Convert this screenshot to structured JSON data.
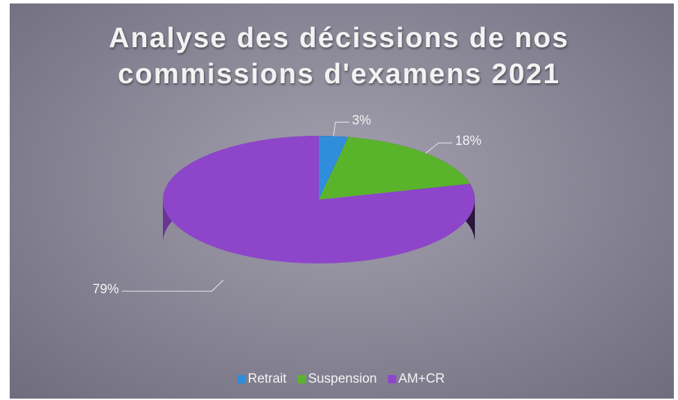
{
  "chart_data": {
    "type": "pie",
    "title": "Analyse des décissions de nos commissions d'examens 2021",
    "categories": [
      "Retrait",
      "Suspension",
      "AM+CR"
    ],
    "values": [
      3,
      18,
      79
    ],
    "value_labels": [
      "3%",
      "18%",
      "79%"
    ],
    "colors": [
      "#2f8ddb",
      "#5ab42b",
      "#8d46c9"
    ],
    "legend": "bottom"
  }
}
